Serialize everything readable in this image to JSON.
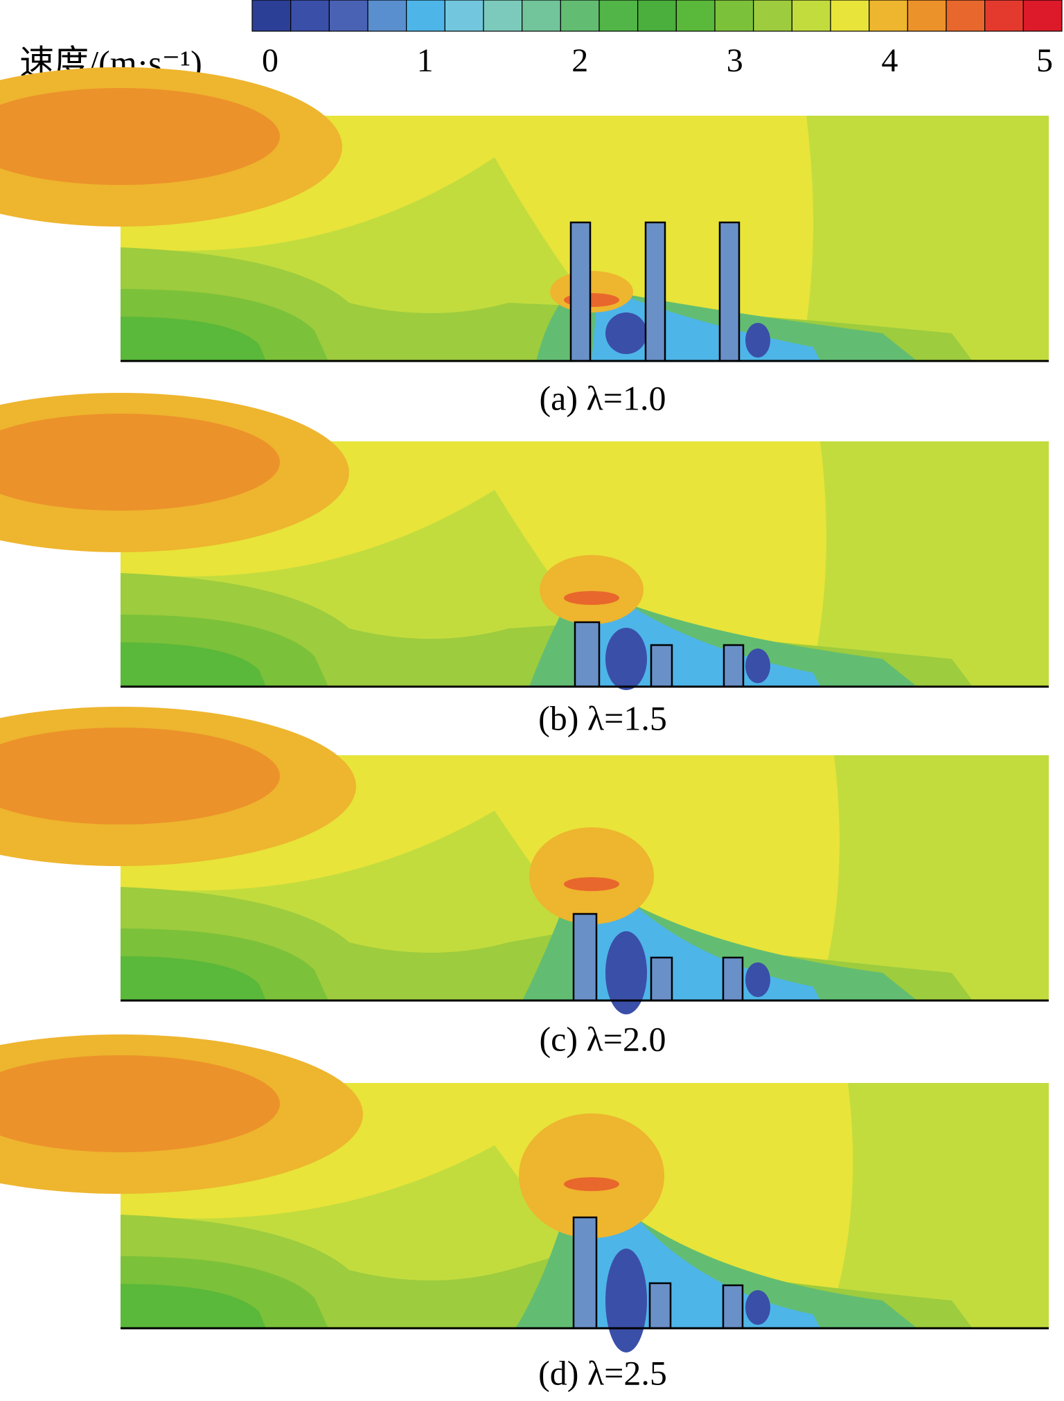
{
  "colorbar": {
    "label": "速度/(m·s⁻¹)",
    "lim": [
      0,
      5
    ],
    "ticks": [
      0,
      1,
      2,
      3,
      4,
      5
    ],
    "colors": [
      "#2c3f96",
      "#3a4fa8",
      "#4a62b4",
      "#5a8fcf",
      "#4eb5e8",
      "#72c6de",
      "#7ccabb",
      "#72c49a",
      "#62bd72",
      "#52b548",
      "#4aaf3c",
      "#5ab83a",
      "#7cc13a",
      "#9dcc3e",
      "#c2dc3e",
      "#e8e43a",
      "#eeb52e",
      "#ec922a",
      "#e8672c",
      "#e43a2e",
      "#dc1a2a"
    ]
  },
  "panels": [
    {
      "caption": "(a) λ=1.0"
    },
    {
      "caption": "(b) λ=1.5"
    },
    {
      "caption": "(c) λ=2.0"
    },
    {
      "caption": "(d) λ=2.5"
    }
  ]
}
